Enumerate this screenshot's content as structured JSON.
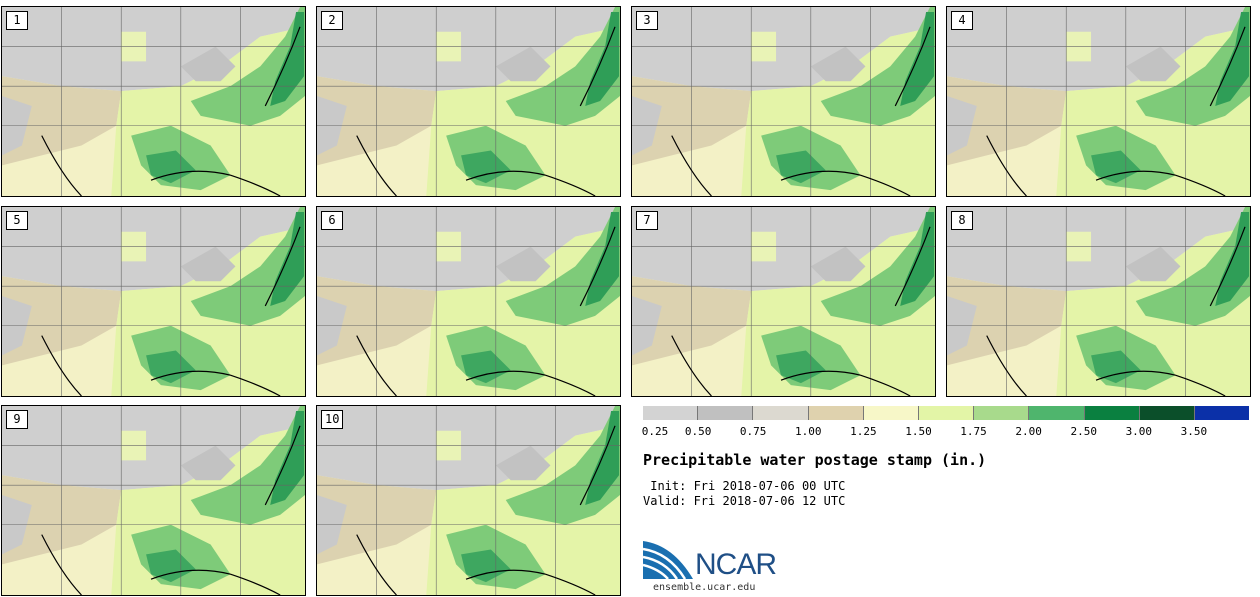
{
  "panels": [
    {
      "label": "1"
    },
    {
      "label": "2"
    },
    {
      "label": "3"
    },
    {
      "label": "4"
    },
    {
      "label": "5"
    },
    {
      "label": "6"
    },
    {
      "label": "7"
    },
    {
      "label": "8"
    },
    {
      "label": "9"
    },
    {
      "label": "10"
    }
  ],
  "legend": {
    "colors": [
      "#d3d3d3",
      "#c0c0c0",
      "#dcd9d0",
      "#dfd2ae",
      "#f7f7c8",
      "#e3f5a7",
      "#a8da8c",
      "#4fb56d",
      "#0a8040",
      "#0b4f2a",
      "#0b30a8"
    ],
    "ticks": [
      "0.25",
      "0.50",
      "0.75",
      "1.00",
      "1.25",
      "1.50",
      "1.75",
      "2.00",
      "2.50",
      "3.00",
      "3.50"
    ]
  },
  "title": "Precipitable water postage stamp (in.)",
  "init": " Init: Fri 2018-07-06 00 UTC",
  "valid": "Valid: Fri 2018-07-06 12 UTC",
  "logo": {
    "text": "NCAR",
    "url": "ensemble.ucar.edu"
  }
}
